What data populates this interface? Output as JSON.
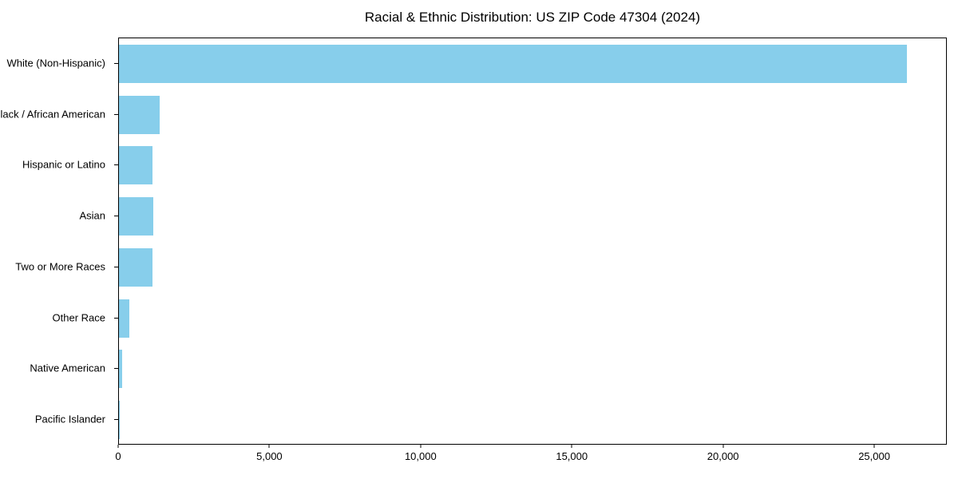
{
  "title": "Racial & Ethnic Distribution: US ZIP Code 47304 (2024)",
  "colors": {
    "bar": "#87CEEB",
    "axis": "#000000",
    "text": "#000000",
    "background": "#ffffff"
  },
  "chart_data": {
    "type": "bar",
    "orientation": "horizontal",
    "title": "Racial & Ethnic Distribution: US ZIP Code 47304 (2024)",
    "categories": [
      "White (Non-Hispanic)",
      "Black / African American",
      "Hispanic or Latino",
      "Asian",
      "Two or More Races",
      "Other Race",
      "Native American",
      "Pacific Islander"
    ],
    "values": [
      26100,
      1350,
      1110,
      1140,
      1100,
      350,
      110,
      10
    ],
    "xlabel": "",
    "ylabel": "",
    "xlim": [
      0,
      27400
    ],
    "xticks": [
      0,
      5000,
      10000,
      15000,
      20000,
      25000
    ],
    "xtick_labels": [
      "0",
      "5,000",
      "10,000",
      "15,000",
      "20,000",
      "25,000"
    ],
    "grid": false,
    "legend": null,
    "bar_color": "#87CEEB"
  }
}
